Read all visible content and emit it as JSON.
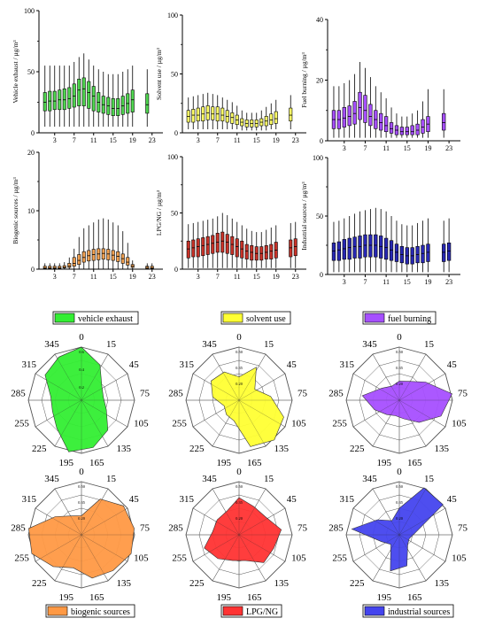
{
  "box_plots": [
    {
      "ylabel": "Vehicle exhaust / µg/m³",
      "ymax": 100,
      "yticks": [
        0,
        50,
        100
      ],
      "fill": "#4fd64f",
      "xticks": [
        "3",
        "7",
        "11",
        "15",
        "19",
        "23"
      ],
      "hours": [
        1,
        2,
        3,
        4,
        5,
        6,
        7,
        8,
        9,
        10,
        11,
        12,
        13,
        14,
        15,
        16,
        17,
        18,
        19,
        22
      ],
      "median": [
        25,
        26,
        26,
        27,
        27,
        28,
        30,
        35,
        36,
        33,
        30,
        25,
        23,
        22,
        20,
        20,
        22,
        24,
        27,
        23
      ],
      "q1": [
        18,
        18,
        19,
        19,
        19,
        20,
        21,
        22,
        22,
        20,
        18,
        17,
        16,
        15,
        14,
        14,
        15,
        16,
        17,
        16
      ],
      "q3": [
        33,
        34,
        34,
        35,
        36,
        37,
        40,
        44,
        45,
        42,
        38,
        33,
        30,
        29,
        28,
        28,
        30,
        32,
        35,
        32
      ],
      "wlo": [
        5,
        5,
        5,
        5,
        5,
        5,
        5,
        5,
        5,
        5,
        5,
        5,
        5,
        5,
        5,
        5,
        5,
        5,
        5,
        5
      ],
      "whi": [
        55,
        55,
        55,
        55,
        55,
        55,
        58,
        62,
        65,
        60,
        55,
        52,
        50,
        48,
        48,
        48,
        50,
        52,
        55,
        52
      ]
    },
    {
      "ylabel": "Solvent use / µg/m³",
      "ymax": 100,
      "yticks": [
        0,
        50,
        100
      ],
      "fill": "#ffff66",
      "xticks": [
        "3",
        "7",
        "11",
        "15",
        "19",
        "23"
      ],
      "hours": [
        1,
        2,
        3,
        4,
        5,
        6,
        7,
        8,
        9,
        10,
        11,
        12,
        13,
        14,
        15,
        16,
        17,
        18,
        19,
        22
      ],
      "median": [
        14,
        15,
        15,
        16,
        17,
        16,
        16,
        15,
        14,
        13,
        11,
        9,
        8,
        8,
        8,
        9,
        10,
        11,
        12,
        15
      ],
      "q1": [
        9,
        9,
        10,
        10,
        11,
        11,
        10,
        10,
        9,
        8,
        7,
        6,
        5,
        5,
        5,
        6,
        6,
        7,
        8,
        10
      ],
      "q3": [
        19,
        20,
        21,
        22,
        23,
        22,
        22,
        21,
        19,
        17,
        15,
        12,
        11,
        11,
        11,
        12,
        14,
        16,
        18,
        21
      ],
      "wlo": [
        3,
        3,
        3,
        3,
        3,
        3,
        3,
        3,
        3,
        3,
        3,
        2,
        2,
        2,
        2,
        2,
        2,
        3,
        3,
        3
      ],
      "whi": [
        30,
        31,
        32,
        33,
        34,
        33,
        32,
        30,
        28,
        26,
        23,
        19,
        17,
        17,
        17,
        19,
        22,
        25,
        28,
        32
      ]
    },
    {
      "ylabel": "Fuel burning / µg/m³",
      "ymax": 40,
      "yticks": [
        0,
        20,
        40
      ],
      "fill": "#a64fff",
      "xticks": [
        "3",
        "7",
        "11",
        "15",
        "19",
        "23"
      ],
      "hours": [
        1,
        2,
        3,
        4,
        5,
        6,
        7,
        8,
        9,
        10,
        11,
        12,
        13,
        14,
        15,
        16,
        17,
        18,
        19,
        22
      ],
      "median": [
        7,
        7,
        7.5,
        8,
        9,
        11,
        10,
        8,
        7,
        6,
        5,
        4,
        3.5,
        3,
        3,
        3,
        3.5,
        4.5,
        5.5,
        6
      ],
      "q1": [
        4,
        4,
        4.5,
        5,
        5.5,
        7,
        6,
        5,
        4,
        3.5,
        3,
        2.5,
        2,
        2,
        2,
        2,
        2,
        2.5,
        3,
        3.5
      ],
      "q3": [
        10,
        10,
        11,
        11.5,
        13,
        16,
        15,
        12,
        10,
        9,
        8,
        6,
        5,
        4.5,
        4.5,
        5,
        5.5,
        7,
        8,
        9
      ],
      "wlo": [
        1,
        1,
        1,
        1,
        1,
        1,
        1,
        1,
        1,
        1,
        1,
        1,
        1,
        1,
        1,
        1,
        1,
        1,
        1,
        1
      ],
      "whi": [
        18,
        18,
        19,
        20,
        22,
        26,
        24,
        21,
        18,
        16,
        14,
        11,
        9,
        8,
        8,
        9,
        10,
        13,
        17,
        17
      ]
    },
    {
      "ylabel": "Biogenic sources / µg/m³",
      "ymax": 20,
      "yticks": [
        0,
        10,
        20
      ],
      "fill": "#f0a050",
      "xticks": [
        "3",
        "7",
        "11",
        "15",
        "19",
        "23"
      ],
      "hours": [
        1,
        2,
        3,
        4,
        5,
        6,
        7,
        8,
        9,
        10,
        11,
        12,
        13,
        14,
        15,
        16,
        17,
        18,
        19,
        22,
        23
      ],
      "median": [
        0.2,
        0.2,
        0.2,
        0.2,
        0.3,
        0.5,
        1,
        1.5,
        2,
        2.3,
        2.5,
        2.6,
        2.7,
        2.6,
        2.4,
        2.2,
        1.8,
        1.2,
        0.5,
        0.3,
        0.2
      ],
      "q1": [
        0.1,
        0.1,
        0.1,
        0.1,
        0.2,
        0.3,
        0.5,
        0.8,
        1.2,
        1.4,
        1.5,
        1.6,
        1.7,
        1.6,
        1.5,
        1.3,
        1,
        0.7,
        0.3,
        0.1,
        0.1
      ],
      "q3": [
        0.5,
        0.5,
        0.5,
        0.5,
        0.6,
        1,
        2,
        2.5,
        3,
        3.2,
        3.4,
        3.5,
        3.5,
        3.4,
        3.2,
        3,
        2.6,
        2,
        0.8,
        0.5,
        0.5
      ],
      "wlo": [
        0,
        0,
        0,
        0,
        0,
        0,
        0,
        0,
        0,
        0,
        0,
        0,
        0,
        0,
        0,
        0,
        0,
        0,
        0,
        0,
        0
      ],
      "whi": [
        1,
        1,
        1,
        1,
        1.2,
        2,
        3.5,
        5.5,
        7,
        7.5,
        8,
        8.5,
        8.7,
        8.5,
        8,
        7.5,
        6.5,
        4.5,
        1.5,
        1,
        1
      ]
    },
    {
      "ylabel": "LPG/NG / µg/m³",
      "ymax": 100,
      "yticks": [
        0,
        50,
        100
      ],
      "fill": "#c83228",
      "xticks": [
        "3",
        "7",
        "11",
        "15",
        "19",
        "23"
      ],
      "hours": [
        1,
        2,
        3,
        4,
        5,
        6,
        7,
        8,
        9,
        10,
        11,
        12,
        13,
        14,
        15,
        16,
        17,
        18,
        19,
        22,
        23
      ],
      "median": [
        18,
        19,
        20,
        21,
        22,
        23,
        24,
        25,
        24,
        22,
        20,
        18,
        16,
        15,
        14,
        14,
        15,
        16,
        17,
        19,
        20
      ],
      "q1": [
        10,
        11,
        11,
        12,
        13,
        14,
        15,
        15,
        14,
        13,
        11,
        10,
        9,
        8,
        8,
        8,
        9,
        9,
        10,
        11,
        12
      ],
      "q3": [
        25,
        26,
        27,
        28,
        29,
        30,
        32,
        33,
        31,
        29,
        27,
        25,
        22,
        21,
        20,
        20,
        21,
        22,
        24,
        26,
        27
      ],
      "wlo": [
        1,
        1,
        1,
        1,
        1,
        1,
        1,
        1,
        1,
        1,
        1,
        1,
        1,
        1,
        1,
        1,
        1,
        1,
        1,
        1,
        1
      ],
      "whi": [
        40,
        41,
        42,
        43,
        44,
        45,
        47,
        50,
        48,
        45,
        42,
        39,
        36,
        34,
        33,
        33,
        35,
        37,
        39,
        41,
        42
      ]
    },
    {
      "ylabel": "Industrial sources / µg/m³",
      "ymax": 100,
      "yticks": [
        0,
        50,
        100
      ],
      "fill": "#2828b4",
      "xticks": [
        "3",
        "7",
        "11",
        "15",
        "19",
        "23"
      ],
      "hours": [
        1,
        2,
        3,
        4,
        5,
        6,
        7,
        8,
        9,
        10,
        11,
        12,
        13,
        14,
        15,
        16,
        17,
        18,
        19,
        22,
        23
      ],
      "median": [
        20,
        21,
        22,
        23,
        24,
        24,
        25,
        25,
        25,
        24,
        23,
        21,
        19,
        17,
        16,
        16,
        17,
        18,
        19,
        19,
        20
      ],
      "q1": [
        12,
        12,
        13,
        13,
        14,
        14,
        15,
        15,
        15,
        14,
        13,
        12,
        11,
        10,
        9,
        9,
        10,
        10,
        11,
        11,
        12
      ],
      "q3": [
        27,
        28,
        30,
        31,
        32,
        33,
        34,
        34,
        34,
        33,
        31,
        29,
        26,
        24,
        23,
        23,
        24,
        25,
        26,
        26,
        27
      ],
      "wlo": [
        2,
        2,
        2,
        2,
        2,
        2,
        2,
        2,
        2,
        2,
        2,
        2,
        2,
        2,
        2,
        2,
        2,
        2,
        2,
        2,
        2
      ],
      "whi": [
        45,
        46,
        48,
        50,
        52,
        54,
        55,
        56,
        57,
        56,
        54,
        50,
        46,
        43,
        42,
        42,
        44,
        46,
        48,
        46,
        48
      ]
    }
  ],
  "polar_angles": [
    "0",
    "15",
    "45",
    "75",
    "105",
    "135",
    "165",
    "195",
    "225",
    "255",
    "285",
    "315",
    "345"
  ],
  "polar_plots": [
    {
      "legend": "vehicle exhaust",
      "fill": "#33ee33",
      "rlabels": [
        "0.6",
        "0.4",
        "0.2"
      ],
      "values": [
        0.6,
        0.45,
        0.28,
        0.25,
        0.3,
        0.45,
        0.55,
        0.6,
        0.42,
        0.35,
        0.35,
        0.5,
        0.55
      ]
    },
    {
      "legend": "solvent use",
      "fill": "#ffff33",
      "rlabels": [
        "0.50",
        "0.35",
        "0.20"
      ],
      "values": [
        0.22,
        0.35,
        0.18,
        0.3,
        0.45,
        0.65,
        0.45,
        0.2,
        0.18,
        0.15,
        0.25,
        0.32,
        0.3
      ]
    },
    {
      "legend": "fuel burning",
      "fill": "#a64fff",
      "rlabels": [
        "0.50",
        "0.35",
        "0.20"
      ],
      "values": [
        0.18,
        0.2,
        0.3,
        0.5,
        0.42,
        0.28,
        0.18,
        0.15,
        0.18,
        0.25,
        0.35,
        0.2,
        0.15
      ]
    },
    {
      "legend": "biogenic sources",
      "fill": "#ff9944",
      "rlabels": [
        "0.50",
        "0.35",
        "0.20"
      ],
      "values": [
        0.18,
        0.38,
        0.48,
        0.65,
        0.55,
        0.45,
        0.42,
        0.32,
        0.4,
        0.78,
        0.7,
        0.3,
        0.2
      ]
    },
    {
      "legend": "LPG/NG",
      "fill": "#ff3333",
      "rlabels": [
        "0.50",
        "0.35",
        "0.20"
      ],
      "values": [
        0.35,
        0.3,
        0.3,
        0.4,
        0.35,
        0.35,
        0.25,
        0.25,
        0.3,
        0.35,
        0.25,
        0.25,
        0.25
      ]
    },
    {
      "legend": "industrial sources",
      "fill": "#4444ee",
      "rlabels": [
        "0.50",
        "0.35",
        "0.20"
      ],
      "values": [
        0.25,
        0.75,
        0.6,
        0.15,
        0.1,
        0.12,
        0.3,
        0.35,
        0.12,
        0.18,
        0.45,
        0.25,
        0.15
      ]
    }
  ]
}
